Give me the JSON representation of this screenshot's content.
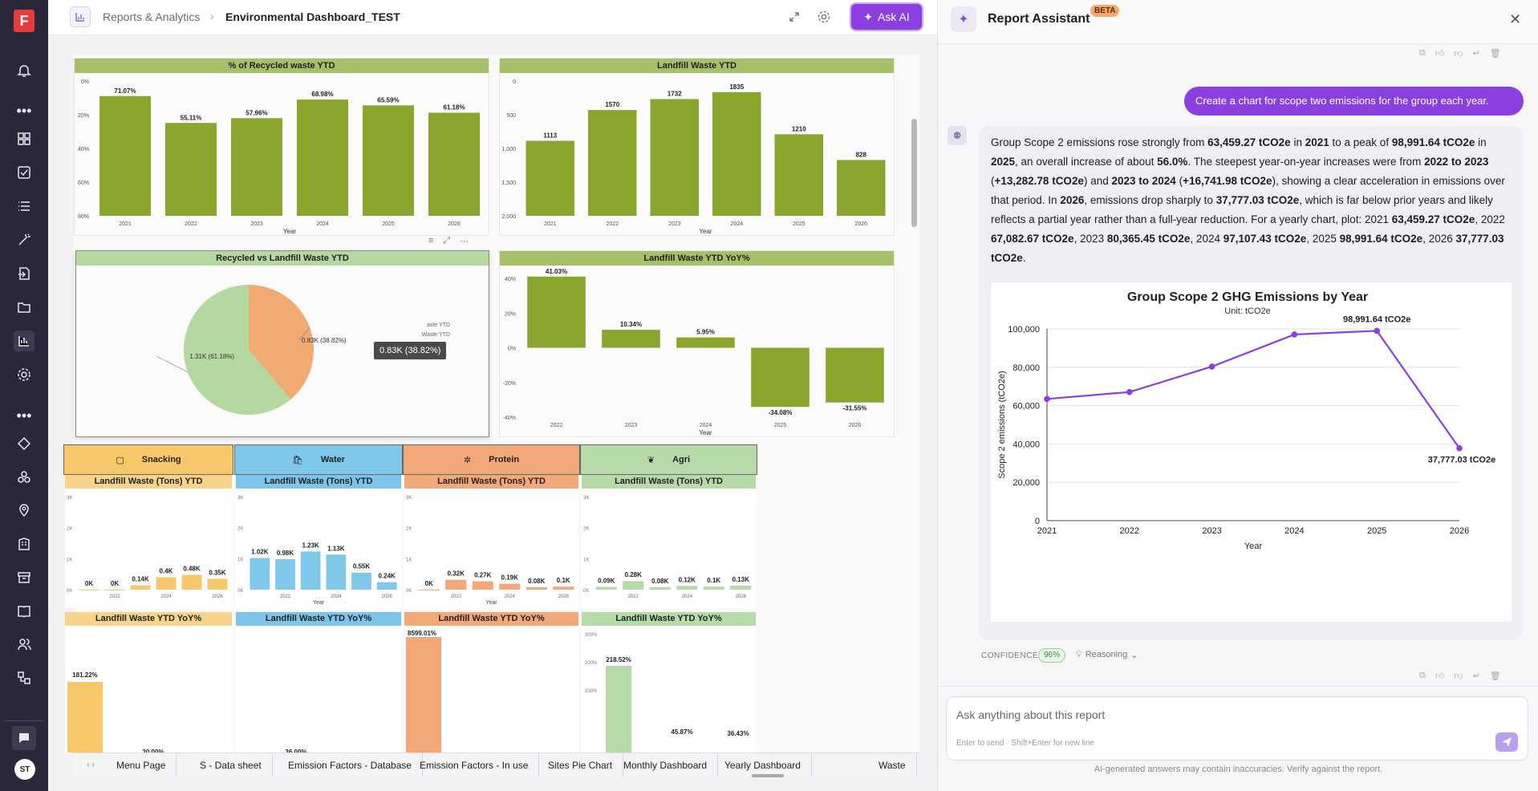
{
  "breadcrumb": {
    "section": "Reports & Analytics",
    "page": "Environmental Dashboard_TEST"
  },
  "toolbar": {
    "ask_ai_label": "Ask AI"
  },
  "user": {
    "initials": "ST"
  },
  "charts": {
    "recycled_pct": {
      "title": "% of Recycled waste YTD",
      "xlabel": "Year",
      "categories": [
        "2021",
        "2022",
        "2023",
        "2024",
        "2025",
        "2026"
      ],
      "values": [
        71.07,
        55.11,
        57.96,
        68.98,
        65.59,
        61.18
      ],
      "labels": [
        "71.07%",
        "55.11%",
        "57.96%",
        "68.98%",
        "65.59%",
        "61.18%"
      ],
      "ticks": [
        "0%",
        "20%",
        "40%",
        "60%",
        "80%"
      ],
      "ylim": [
        0,
        80
      ]
    },
    "landfill": {
      "title": "Landfill Waste YTD",
      "xlabel": "Year",
      "categories": [
        "2021",
        "2022",
        "2023",
        "2024",
        "2025",
        "2026"
      ],
      "values": [
        1113,
        1570,
        1732,
        1835,
        1210,
        828
      ],
      "labels": [
        "1113",
        "1570",
        "1732",
        "1835",
        "1210",
        "828"
      ],
      "ticks": [
        "0",
        "500",
        "1,000",
        "1,500",
        "2,000"
      ],
      "ylim": [
        0,
        2000
      ]
    },
    "pie": {
      "title": "Recycled vs Landfill Waste YTD",
      "slices": [
        {
          "label": "0.83K (38.82%)",
          "value": 38.82,
          "color": "#f0aa72"
        },
        {
          "label": "1.31K (61.18%)",
          "value": 61.18,
          "color": "#b5d7a0"
        }
      ],
      "tooltip": "0.83K (38.82%)",
      "legend_fragments": [
        "aste YTD",
        "Waste YTD"
      ]
    },
    "landfill_yoy": {
      "title": "Landfill Waste YTD YoY%",
      "xlabel": "Year",
      "categories": [
        "2022",
        "2023",
        "2024",
        "2025",
        "2026"
      ],
      "values": [
        41.03,
        10.34,
        5.95,
        -34.08,
        -31.55
      ],
      "labels": [
        "41.03%",
        "10.34%",
        "5.95%",
        "-34.08%",
        "-31.55%"
      ],
      "ticks": [
        "40%",
        "20%",
        "0%",
        "-20%",
        "-40%"
      ],
      "ylim": [
        -40,
        40
      ]
    }
  },
  "segments": [
    {
      "name": "Snacking",
      "color": "#f6c86a",
      "light": "#f7d38c",
      "sub_title": "Landfill Waste (Tons) YTD",
      "yoy_title": "Landfill Waste YTD YoY%",
      "bar_labels": [
        "0K",
        "0K",
        "0.14K",
        "0.4K",
        "0.48K",
        "0.35K"
      ],
      "values": [
        0,
        0,
        0.14,
        0.4,
        0.48,
        0.35
      ],
      "xticks": [
        "2022",
        "2024",
        "2026"
      ],
      "yticks": [
        "3K",
        "2K",
        "1K",
        "0K"
      ],
      "yoy_label": "181.22%",
      "yoy_partial": "30.00%"
    },
    {
      "name": "Water",
      "color": "#7ec8ea",
      "light": "#7cc4ea",
      "sub_title": "Landfill Waste (Tons) YTD",
      "yoy_title": "Landfill Waste YTD YoY%",
      "bar_labels": [
        "1.02K",
        "0.98K",
        "1.23K",
        "1.13K",
        "0.55K",
        "0.24K"
      ],
      "values": [
        1.02,
        0.98,
        1.23,
        1.13,
        0.55,
        0.24
      ],
      "xticks": [
        "2022",
        "2024",
        "2026"
      ],
      "xlabel": "Year",
      "yticks": [
        "3K",
        "2K",
        "1K",
        "0K"
      ],
      "yoy_partial": "36.00%"
    },
    {
      "name": "Protein",
      "color": "#f2a878",
      "light": "#f2a878",
      "sub_title": "Landfill Waste (Tons) YTD",
      "yoy_title": "Landfill Waste YTD YoY%",
      "bar_labels": [
        "0K",
        "0.32K",
        "0.27K",
        "0.19K",
        "0.08K",
        "0.1K"
      ],
      "values": [
        0,
        0.32,
        0.27,
        0.19,
        0.08,
        0.1
      ],
      "xticks": [
        "2022",
        "2024",
        "2026"
      ],
      "xlabel": "Year",
      "yticks": [
        "3K",
        "2K",
        "1K",
        "0K"
      ],
      "yoy_label": "8599.01%"
    },
    {
      "name": "Agri",
      "color": "#b7dba8",
      "light": "#b7dba8",
      "sub_title": "Landfill Waste (Tons) YTD",
      "yoy_title": "Landfill Waste YTD YoY%",
      "bar_labels": [
        "0.09K",
        "0.28K",
        "0.08K",
        "0.12K",
        "0.1K",
        "0.13K"
      ],
      "values": [
        0.09,
        0.28,
        0.08,
        0.12,
        0.1,
        0.13
      ],
      "xticks": [
        "2022",
        "2024",
        "2026"
      ],
      "yticks": [
        "3K",
        "2K",
        "1K",
        "0K"
      ],
      "yoy_ticks": [
        "300%",
        "200%",
        "100%"
      ],
      "yoy_labels": [
        "218.52%",
        "45.87%",
        "36.43%"
      ]
    }
  ],
  "tabs": [
    "Menu Page",
    "S - Data sheet",
    "Emission Factors - Database",
    "Emission Factors - In use",
    "Sites Pie Chart",
    "Monthly Dashboard",
    "Yearly Dashboard",
    "Waste"
  ],
  "assistant": {
    "title": "Report Assistant",
    "badge": "BETA",
    "user_message": "Create a chart for scope two emissions for the group each year.",
    "confidence_label": "CONFIDENCE",
    "confidence_value": "96%",
    "reasoning_label": "Reasoning",
    "input_placeholder": "Ask anything about this report",
    "input_hint": "Enter to send · Shift+Enter for new line",
    "disclaimer": "AI-generated answers may contain inaccuracies. Verify against the report."
  },
  "assistant_text": [
    [
      "Group Scope 2 emissions rose strongly from ",
      ""
    ],
    [
      "63,459.27 tCO2e",
      "b"
    ],
    [
      " in ",
      ""
    ],
    [
      "2021",
      "b"
    ],
    [
      " to a peak of ",
      ""
    ],
    [
      "98,991.64 tCO2e",
      "b"
    ],
    [
      " in ",
      ""
    ],
    [
      "2025",
      "b"
    ],
    [
      ", an overall increase of about ",
      ""
    ],
    [
      "56.0%",
      "b"
    ],
    [
      ". The steepest year-on-year increases were from ",
      ""
    ],
    [
      "2022 to 2023",
      "b"
    ],
    [
      " (",
      ""
    ],
    [
      "+13,282.78 tCO2e",
      "b"
    ],
    [
      ") and ",
      ""
    ],
    [
      "2023 to 2024",
      "b"
    ],
    [
      " (",
      ""
    ],
    [
      "+16,741.98 tCO2e",
      "b"
    ],
    [
      "), showing a clear acceleration in emissions over that period. In ",
      ""
    ],
    [
      "2026",
      "b"
    ],
    [
      ", emissions drop sharply to ",
      ""
    ],
    [
      "37,777.03 tCO2e",
      "b"
    ],
    [
      ", which is far below prior years and likely reflects a partial year rather than a full-year reduction. For a yearly chart, plot: 2021 ",
      ""
    ],
    [
      "63,459.27 tCO2e",
      "b"
    ],
    [
      ", 2022 ",
      ""
    ],
    [
      "67,082.67 tCO2e",
      "b"
    ],
    [
      ", 2023 ",
      ""
    ],
    [
      "80,365.45 tCO2e",
      "b"
    ],
    [
      ", 2024 ",
      ""
    ],
    [
      "97,107.43 tCO2e",
      "b"
    ],
    [
      ", 2025 ",
      ""
    ],
    [
      "98,991.64 tCO2e",
      "b"
    ],
    [
      ", 2026 ",
      ""
    ],
    [
      "37,777.03 tCO2e",
      "b"
    ],
    [
      ".",
      ""
    ]
  ],
  "chart_data": {
    "type": "line",
    "title": "Group Scope 2 GHG Emissions by Year",
    "subtitle": "Unit: tCO2e",
    "xlabel": "Year",
    "ylabel": "Scope 2 emissions (tCO2e)",
    "x": [
      "2021",
      "2022",
      "2023",
      "2024",
      "2025",
      "2026"
    ],
    "series": [
      {
        "values": [
          63459.27,
          67082.67,
          80365.45,
          97107.43,
          98991.64,
          37777.03
        ],
        "color": "#8b3fe0"
      }
    ],
    "ylim": [
      0,
      100000
    ],
    "yticks": [
      "0",
      "20,000",
      "40,000",
      "60,000",
      "80,000",
      "100,000"
    ],
    "annotations": [
      "98,991.64 tCO2e",
      "37,777.03 tCO2e"
    ],
    "grid": true
  },
  "colors": {
    "accent": "#8b3fe0",
    "nav_bg": "#2a2838",
    "bar_green": "#8aa52c",
    "header_green": "#a6c06a"
  }
}
